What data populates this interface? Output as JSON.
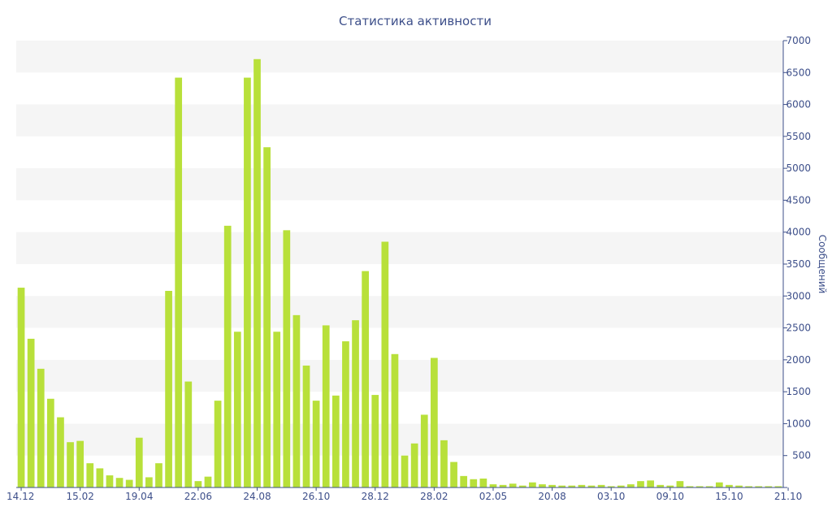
{
  "colors": {
    "bar": "#b8e03a",
    "band": "#f5f5f5",
    "axis": "#3d4f8a",
    "text": "#3d4f8a"
  },
  "chart_data": {
    "type": "bar",
    "title": "Статистика активности",
    "xlabel": "",
    "ylabel": "Сообщений",
    "ylim": [
      0,
      7000
    ],
    "yticks": [
      0,
      500,
      1000,
      1500,
      2000,
      2500,
      3000,
      3500,
      4000,
      4500,
      5000,
      5500,
      6000,
      6500,
      7000
    ],
    "y_axis_side": "right",
    "grid": "alternating horizontal bands",
    "xtick_labels": [
      {
        "label": "14.12",
        "index": 0
      },
      {
        "label": "15.02",
        "index": 6
      },
      {
        "label": "19.04",
        "index": 12
      },
      {
        "label": "22.06",
        "index": 18
      },
      {
        "label": "24.08",
        "index": 24
      },
      {
        "label": "26.10",
        "index": 30
      },
      {
        "label": "28.12",
        "index": 36
      },
      {
        "label": "28.02",
        "index": 42
      },
      {
        "label": "02.05",
        "index": 48
      },
      {
        "label": "20.08",
        "index": 54
      },
      {
        "label": "03.10",
        "index": 60
      },
      {
        "label": "09.10",
        "index": 66
      },
      {
        "label": "15.10",
        "index": 72
      },
      {
        "label": "21.10",
        "index": 78
      }
    ],
    "values": [
      3130,
      2330,
      1860,
      1390,
      1100,
      710,
      730,
      380,
      300,
      190,
      150,
      120,
      780,
      160,
      380,
      3080,
      6420,
      1660,
      100,
      170,
      1360,
      4100,
      2440,
      6420,
      6710,
      5330,
      2440,
      4030,
      2700,
      1910,
      1360,
      2540,
      1440,
      2290,
      2620,
      3390,
      1450,
      3850,
      2090,
      500,
      690,
      1140,
      2030,
      740,
      400,
      180,
      130,
      140,
      50,
      40,
      60,
      30,
      80,
      50,
      40,
      30,
      30,
      40,
      30,
      40,
      20,
      30,
      50,
      100,
      110,
      40,
      30,
      100,
      20,
      20,
      20,
      80,
      40,
      30,
      20,
      20,
      20,
      20
    ]
  }
}
